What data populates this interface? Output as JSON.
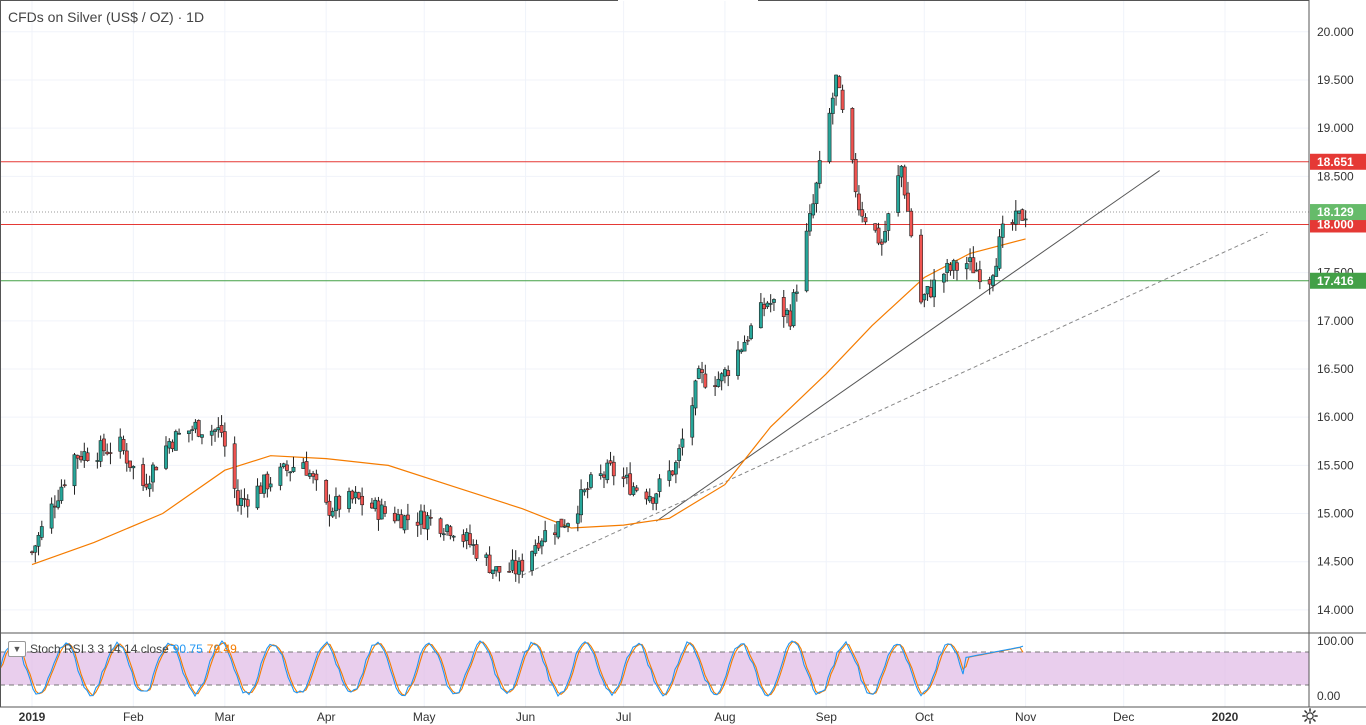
{
  "header": {
    "symbol": "CFDs on Silver (US$ / OZ)",
    "separator": "·",
    "interval": "1D"
  },
  "indicator": {
    "name": "Stoch RSI 3 3 14 14 close",
    "k_value": "90.75",
    "d_value": "79.49",
    "toggle_icon": "chevron-down-icon"
  },
  "settings": {
    "icon": "gear-icon"
  },
  "colors": {
    "up": "#26a69a",
    "down": "#ef5350",
    "candle_border": "#222222",
    "ma": "#f57c00",
    "k_line": "#2196f3",
    "d_line": "#f57c00",
    "stoch_band": "#e1bee7",
    "resistance": "#e53935",
    "support": "#43a047",
    "last_price": "#66bb6a"
  },
  "chart_data": {
    "type": "candlestick",
    "title": "CFDs on Silver (US$ / OZ) · 1D",
    "ylim": [
      13.76,
      20.33
    ],
    "y_ticks": [
      "20.000",
      "19.500",
      "19.000",
      "18.500",
      "18.000",
      "17.500",
      "17.000",
      "16.500",
      "16.000",
      "15.500",
      "15.000",
      "14.500",
      "14.000"
    ],
    "x_ticks": [
      "2019",
      "Feb",
      "Mar",
      "Apr",
      "May",
      "Jun",
      "Jul",
      "Aug",
      "Sep",
      "Oct",
      "Nov",
      "Dec",
      "2020"
    ],
    "horizontal_levels": [
      {
        "value": 18.651,
        "label": "18.651",
        "color": "red"
      },
      {
        "value": 18.0,
        "label": "18.000",
        "color": "red"
      },
      {
        "value": 17.416,
        "label": "17.416",
        "color": "green"
      }
    ],
    "last_price": {
      "value": 18.129,
      "label": "18.129"
    },
    "trendlines": [
      {
        "style": "solid",
        "from": [
          "2019-07-11",
          14.92
        ],
        "to": [
          "2019-12-12",
          18.56
        ]
      },
      {
        "style": "dashed",
        "from": [
          "2019-05-31",
          14.36
        ],
        "to": [
          "2020-01-14",
          17.92
        ]
      }
    ],
    "price_path": [
      [
        "2019-01-01",
        14.6
      ],
      [
        "2019-01-14",
        15.6
      ],
      [
        "2019-01-28",
        15.7
      ],
      [
        "2019-02-04",
        15.3
      ],
      [
        "2019-02-12",
        15.75
      ],
      [
        "2019-02-20",
        15.9
      ],
      [
        "2019-02-28",
        15.85
      ],
      [
        "2019-03-05",
        15.1
      ],
      [
        "2019-03-15",
        15.35
      ],
      [
        "2019-03-25",
        15.55
      ],
      [
        "2019-04-01",
        15.05
      ],
      [
        "2019-04-10",
        15.15
      ],
      [
        "2019-04-18",
        15.02
      ],
      [
        "2019-04-25",
        14.95
      ],
      [
        "2019-05-02",
        14.95
      ],
      [
        "2019-05-10",
        14.85
      ],
      [
        "2019-05-17",
        14.62
      ],
      [
        "2019-05-23",
        14.4
      ],
      [
        "2019-05-30",
        14.42
      ],
      [
        "2019-06-05",
        14.75
      ],
      [
        "2019-06-14",
        14.95
      ],
      [
        "2019-06-21",
        15.3
      ],
      [
        "2019-06-27",
        15.45
      ],
      [
        "2019-07-03",
        15.3
      ],
      [
        "2019-07-10",
        15.2
      ],
      [
        "2019-07-17",
        15.5
      ],
      [
        "2019-07-24",
        16.4
      ],
      [
        "2019-07-31",
        16.4
      ],
      [
        "2019-08-07",
        16.8
      ],
      [
        "2019-08-14",
        17.2
      ],
      [
        "2019-08-21",
        17.05
      ],
      [
        "2019-08-28",
        18.2
      ],
      [
        "2019-09-04",
        19.5
      ],
      [
        "2019-09-11",
        18.2
      ],
      [
        "2019-09-18",
        17.8
      ],
      [
        "2019-09-24",
        18.6
      ],
      [
        "2019-09-30",
        17.2
      ],
      [
        "2019-10-07",
        17.5
      ],
      [
        "2019-10-14",
        17.6
      ],
      [
        "2019-10-21",
        17.45
      ],
      [
        "2019-10-25",
        17.9
      ],
      [
        "2019-11-01",
        18.13
      ]
    ],
    "ma_path": [
      [
        "2019-01-01",
        14.47
      ],
      [
        "2019-01-20",
        14.7
      ],
      [
        "2019-02-10",
        15.0
      ],
      [
        "2019-03-01",
        15.45
      ],
      [
        "2019-03-15",
        15.6
      ],
      [
        "2019-04-01",
        15.57
      ],
      [
        "2019-04-20",
        15.5
      ],
      [
        "2019-05-10",
        15.28
      ],
      [
        "2019-05-31",
        15.05
      ],
      [
        "2019-06-15",
        14.85
      ],
      [
        "2019-07-01",
        14.88
      ],
      [
        "2019-07-15",
        14.95
      ],
      [
        "2019-08-01",
        15.3
      ],
      [
        "2019-08-15",
        15.9
      ],
      [
        "2019-09-01",
        16.45
      ],
      [
        "2019-09-15",
        16.95
      ],
      [
        "2019-10-01",
        17.45
      ],
      [
        "2019-10-15",
        17.7
      ],
      [
        "2019-11-01",
        17.85
      ]
    ],
    "stoch_rsi": {
      "ylim": [
        0,
        100
      ],
      "y_ticks": [
        "100.00",
        "0.00"
      ],
      "bands": [
        20,
        80
      ],
      "k": 90.75,
      "d": 79.49
    }
  }
}
